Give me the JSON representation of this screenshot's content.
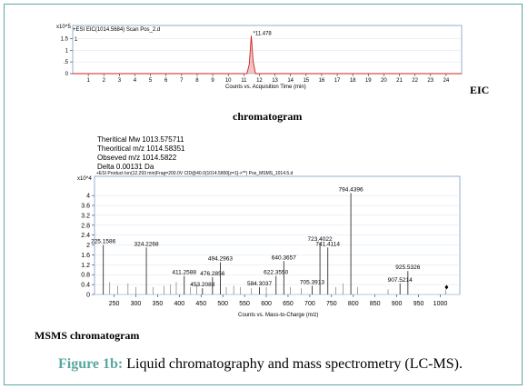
{
  "eic": {
    "scale_label": "x10^5",
    "header": "+ESI EIC(1014.5684) Scan Pos_2.d",
    "series_number": "1",
    "peak_label": "*11.478",
    "xlabel": "Counts vs. Acquisition Time (min)",
    "side_label": "EIC",
    "caption": "chromatogram"
  },
  "info": {
    "lines": [
      "Theritical Mw  1013.575711",
      "Theoritical m/z 1014.58351",
      "Obseved m/z 1014.5822",
      "Delta 0.00131 Da"
    ]
  },
  "msms": {
    "scale_label": "x10^4",
    "header": "+ESI Product Ion(12.293 min)Frag=200.0V CID@40.0(1014.5800[z=1]->**) Pos_MSMS_1014.5.d",
    "xlabel": "Counts vs. Mass-to-Charge (m/z)",
    "caption": "MSMS chromatogram"
  },
  "figure_caption": {
    "label": "Figure 1b:",
    "text": "Liquid chromatography and mass spectrometry (LC-MS)."
  },
  "chart_data": [
    {
      "type": "line",
      "title": "+ESI EIC(1014.5684) Scan Pos_2.d",
      "xlabel": "Counts vs. Acquisition Time (min)",
      "ylabel": "",
      "xlim": [
        0,
        25
      ],
      "ylim": [
        0,
        1.75
      ],
      "xticks": [
        1,
        2,
        3,
        4,
        5,
        6,
        7,
        8,
        9,
        10,
        11,
        12,
        13,
        14,
        15,
        16,
        17,
        18,
        19,
        20,
        21,
        22,
        23,
        24
      ],
      "yticks": [
        0,
        0.5,
        1,
        1.5
      ],
      "ytick_labels": [
        "0",
        ".5",
        "1",
        "1.5"
      ],
      "y_multiplier": "x10^5",
      "peaks": [
        {
          "x": 11.478,
          "y": 1.62,
          "label": "*11.478"
        }
      ],
      "series": [
        {
          "x": [
            0,
            11.2,
            11.35,
            11.478,
            11.6,
            11.75,
            25
          ],
          "y": [
            0,
            0,
            0.4,
            1.62,
            0.5,
            0,
            0
          ]
        }
      ],
      "color": "#cc2222"
    },
    {
      "type": "bar",
      "title": "+ESI Product Ion(12.293 min)Frag=200.0V CID@40.0(1014.5800[z=1]->**) Pos_MSMS_1014.5.d",
      "xlabel": "Counts vs. Mass-to-Charge (m/z)",
      "ylabel": "",
      "xlim": [
        205,
        1045
      ],
      "ylim": [
        0,
        4.3
      ],
      "xticks": [
        250,
        300,
        350,
        400,
        450,
        500,
        550,
        600,
        650,
        700,
        750,
        800,
        850,
        900,
        950,
        1000
      ],
      "yticks": [
        0,
        0.4,
        0.8,
        1.2,
        1.6,
        2,
        2.4,
        2.8,
        3.2,
        3.6,
        4
      ],
      "y_multiplier": "x10^4",
      "labeled_peaks": [
        {
          "mz": 225.1586,
          "intensity": 2.0,
          "label": "225.1586"
        },
        {
          "mz": 324.2268,
          "intensity": 1.9,
          "label": "324.2268"
        },
        {
          "mz": 411.2588,
          "intensity": 0.75,
          "label": "411.2588"
        },
        {
          "mz": 453.2088,
          "intensity": 0.25,
          "label": "453.2088"
        },
        {
          "mz": 476.2856,
          "intensity": 0.7,
          "label": "476.2856"
        },
        {
          "mz": 494.2963,
          "intensity": 1.3,
          "label": "494.2963"
        },
        {
          "mz": 584.3037,
          "intensity": 0.3,
          "label": "584.3037"
        },
        {
          "mz": 622.355,
          "intensity": 0.75,
          "label": "622.3550"
        },
        {
          "mz": 640.3657,
          "intensity": 1.35,
          "label": "640.3657"
        },
        {
          "mz": 705.3913,
          "intensity": 0.35,
          "label": "705.3913"
        },
        {
          "mz": 723.4022,
          "intensity": 2.1,
          "label": "723.4022"
        },
        {
          "mz": 741.4114,
          "intensity": 1.9,
          "label": "741.4114"
        },
        {
          "mz": 794.4396,
          "intensity": 4.1,
          "label": "794.4396"
        },
        {
          "mz": 907.5214,
          "intensity": 0.45,
          "label": "907.5214"
        },
        {
          "mz": 925.5326,
          "intensity": 0.95,
          "label": "925.5326"
        }
      ],
      "minor_peaks": [
        {
          "mz": 240,
          "intensity": 0.5
        },
        {
          "mz": 258,
          "intensity": 0.35
        },
        {
          "mz": 282,
          "intensity": 0.45
        },
        {
          "mz": 300,
          "intensity": 0.3
        },
        {
          "mz": 340,
          "intensity": 0.3
        },
        {
          "mz": 365,
          "intensity": 0.35
        },
        {
          "mz": 380,
          "intensity": 0.4
        },
        {
          "mz": 393,
          "intensity": 0.5
        },
        {
          "mz": 425,
          "intensity": 0.3
        },
        {
          "mz": 440,
          "intensity": 0.4
        },
        {
          "mz": 508,
          "intensity": 0.3
        },
        {
          "mz": 525,
          "intensity": 0.35
        },
        {
          "mz": 540,
          "intensity": 0.3
        },
        {
          "mz": 566,
          "intensity": 0.25
        },
        {
          "mz": 600,
          "intensity": 0.3
        },
        {
          "mz": 655,
          "intensity": 0.3
        },
        {
          "mz": 680,
          "intensity": 0.25
        },
        {
          "mz": 760,
          "intensity": 0.3
        },
        {
          "mz": 776,
          "intensity": 0.45
        },
        {
          "mz": 810,
          "intensity": 0.3
        },
        {
          "mz": 880,
          "intensity": 0.2
        },
        {
          "mz": 1013,
          "intensity": 0.2
        }
      ],
      "precursor_marker": {
        "mz": 1014.58,
        "symbol": "♦"
      },
      "color": "#333333"
    }
  ]
}
